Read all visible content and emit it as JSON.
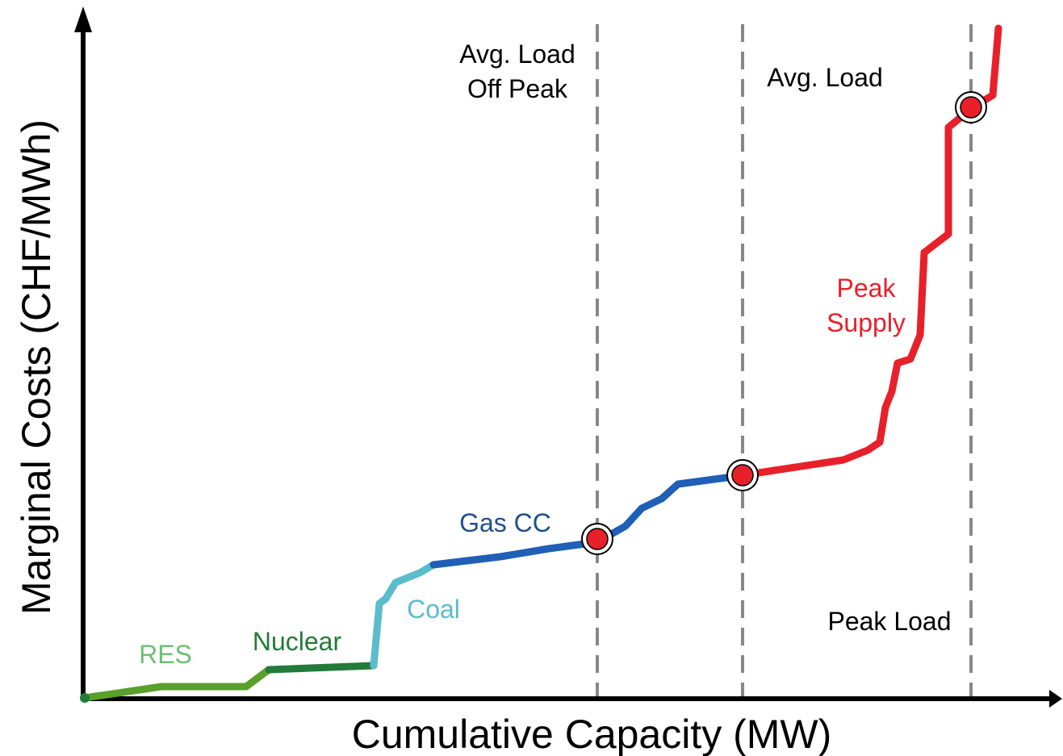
{
  "axes": {
    "x_label": "Cumulative Capacity (MW)",
    "y_label": "Marginal Costs (CHF/MWh)"
  },
  "load_lines": [
    {
      "label": [
        "Avg. Load",
        "Off Peak"
      ]
    },
    {
      "label": [
        "Avg. Load"
      ]
    },
    {
      "label": [
        "Peak Load"
      ]
    }
  ],
  "supply_segments": [
    {
      "label": [
        "RES"
      ]
    },
    {
      "label": [
        "Nuclear"
      ]
    },
    {
      "label": [
        "Coal"
      ]
    },
    {
      "label": [
        "Gas CC"
      ]
    },
    {
      "label": [
        "Peak",
        "Supply"
      ]
    }
  ]
}
